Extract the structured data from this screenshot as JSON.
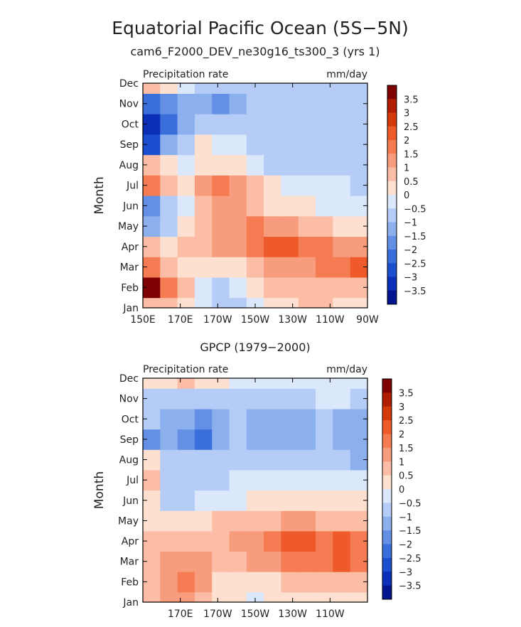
{
  "figure": {
    "title": "Equatorial Pacific Ocean (5S−5N)",
    "subtitle": "cam6_F2000_DEV_ne30g16_ts300_3 (yrs 1)"
  },
  "colorbar": {
    "labels": [
      "3.5",
      "3",
      "2.5",
      "2",
      "1.5",
      "1",
      "0.5",
      "0",
      "−0.5",
      "−1",
      "−1.5",
      "−2",
      "−2.5",
      "−3",
      "−3.5"
    ],
    "colors": [
      "#7f0000",
      "#b11d00",
      "#d53a0d",
      "#ef5a2a",
      "#f47b52",
      "#f89c7e",
      "#fbbda6",
      "#fde0d0",
      "#dbe8fb",
      "#b5cdf6",
      "#8cb0ee",
      "#6390e4",
      "#3a6edb",
      "#1c4ed0",
      "#0c2fb8",
      "#02158f"
    ]
  },
  "chart_data": [
    {
      "type": "heatmap",
      "title": "",
      "top_left_label": "Precipitation rate",
      "top_right_label": "mm/day",
      "ylabel": "Month",
      "xlabel": "",
      "x_ticks": [
        "150E",
        "170E",
        "170W",
        "150W",
        "130W",
        "110W",
        "90W"
      ],
      "y_ticks": [
        "Jan",
        "Feb",
        "Mar",
        "Apr",
        "May",
        "Jun",
        "Jul",
        "Aug",
        "Sep",
        "Oct",
        "Nov",
        "Dec"
      ],
      "xlim": [
        "150E",
        "90W"
      ],
      "ylim": [
        "Jan",
        "Dec"
      ],
      "series": [
        {
          "name": "Jan",
          "values": [
            0.8,
            0.6,
            0.2,
            -0.3,
            -0.8,
            -0.5,
            -0.1,
            0.2,
            0.5,
            0.7,
            0.6,
            0.5,
            0.3
          ]
        },
        {
          "name": "Feb",
          "values": [
            3.8,
            2.0,
            0.8,
            -0.2,
            -0.9,
            -0.4,
            0.1,
            0.6,
            0.9,
            1.0,
            0.8,
            0.7,
            0.6
          ]
        },
        {
          "name": "Mar",
          "values": [
            1.8,
            0.9,
            0.5,
            0.4,
            0.3,
            0.4,
            0.6,
            1.1,
            1.4,
            1.5,
            1.6,
            2.0,
            2.2
          ]
        },
        {
          "name": "Apr",
          "values": [
            0.6,
            0.5,
            0.6,
            0.9,
            1.2,
            1.4,
            1.6,
            2.1,
            2.3,
            2.0,
            1.6,
            1.3,
            1.2
          ]
        },
        {
          "name": "May",
          "values": [
            -1.0,
            -0.6,
            0.5,
            1.0,
            1.3,
            1.5,
            1.6,
            1.5,
            1.2,
            0.9,
            0.6,
            0.4,
            0.3
          ]
        },
        {
          "name": "Jun",
          "values": [
            -1.6,
            -0.8,
            -0.4,
            0.9,
            1.2,
            1.1,
            1.0,
            0.5,
            0.2,
            0.1,
            0.0,
            0.0,
            -0.1
          ]
        },
        {
          "name": "Jul",
          "values": [
            1.6,
            0.6,
            0.5,
            1.3,
            1.6,
            1.2,
            0.7,
            0.1,
            -0.2,
            -0.3,
            -0.4,
            -0.4,
            -0.5
          ]
        },
        {
          "name": "Aug",
          "values": [
            1.0,
            0.2,
            -0.3,
            0.2,
            0.4,
            0.3,
            -0.1,
            -0.5,
            -0.6,
            -0.6,
            -0.6,
            -0.6,
            -0.7
          ]
        },
        {
          "name": "Sep",
          "values": [
            -2.5,
            -1.0,
            -0.6,
            0.2,
            -0.2,
            -0.3,
            -0.6,
            -0.7,
            -0.7,
            -0.7,
            -0.7,
            -0.7,
            -0.6
          ]
        },
        {
          "name": "Oct",
          "values": [
            -3.0,
            -2.0,
            -1.2,
            -0.7,
            -0.5,
            -0.5,
            -0.7,
            -0.8,
            -0.8,
            -0.8,
            -0.8,
            -0.7,
            -0.7
          ]
        },
        {
          "name": "Nov",
          "values": [
            -2.4,
            -1.6,
            -1.2,
            -1.0,
            -1.5,
            -1.1,
            -0.9,
            -0.8,
            -0.8,
            -0.7,
            -0.7,
            -0.6,
            -0.6
          ]
        },
        {
          "name": "Dec",
          "values": [
            0.8,
            0.2,
            -0.4,
            -0.8,
            -0.9,
            -0.8,
            -0.7,
            -0.6,
            -0.6,
            -0.5,
            -0.5,
            -0.5,
            -0.5
          ]
        }
      ]
    },
    {
      "type": "heatmap",
      "title": "GPCP (1979−2000)",
      "top_left_label": "Precipitation rate",
      "top_right_label": "mm/day",
      "ylabel": "Month",
      "xlabel": "",
      "x_ticks": [
        "",
        "170E",
        "170W",
        "150W",
        "130W",
        "110W",
        ""
      ],
      "y_ticks": [
        "Jan",
        "Feb",
        "Mar",
        "Apr",
        "May",
        "Jun",
        "Jul",
        "Aug",
        "Sep",
        "Oct",
        "Nov",
        "Dec"
      ],
      "xlim": [
        "150E",
        "90W"
      ],
      "ylim": [
        "Jan",
        "Dec"
      ],
      "series": [
        {
          "name": "Jan",
          "values": [
            0.6,
            1.2,
            1.4,
            0.8,
            0.3,
            0.1,
            0.0,
            0.1,
            0.2,
            0.3,
            0.3,
            0.2,
            0.1
          ]
        },
        {
          "name": "Feb",
          "values": [
            0.8,
            1.3,
            1.6,
            1.2,
            0.5,
            0.2,
            0.2,
            0.4,
            0.6,
            0.8,
            0.9,
            0.9,
            0.6
          ]
        },
        {
          "name": "Mar",
          "values": [
            1.0,
            1.4,
            1.5,
            1.2,
            0.8,
            0.8,
            1.1,
            1.4,
            1.8,
            2.0,
            1.9,
            2.1,
            1.7
          ]
        },
        {
          "name": "Apr",
          "values": [
            0.6,
            0.9,
            0.9,
            0.9,
            0.9,
            1.1,
            1.5,
            1.8,
            2.2,
            2.5,
            2.0,
            2.2,
            1.6
          ]
        },
        {
          "name": "May",
          "values": [
            0.2,
            0.1,
            0.2,
            0.5,
            0.7,
            0.8,
            0.9,
            1.0,
            1.1,
            1.1,
            1.0,
            0.9,
            0.6
          ]
        },
        {
          "name": "Jun",
          "values": [
            0.3,
            -0.6,
            -0.5,
            -0.3,
            -0.1,
            0.0,
            0.1,
            0.2,
            0.3,
            0.3,
            0.3,
            0.2,
            0.1
          ]
        },
        {
          "name": "Jul",
          "values": [
            0.6,
            -0.7,
            -0.7,
            -0.6,
            -0.5,
            -0.4,
            -0.3,
            -0.2,
            -0.2,
            -0.1,
            -0.1,
            -0.2,
            -0.3
          ]
        },
        {
          "name": "Aug",
          "values": [
            0.1,
            -0.8,
            -0.9,
            -0.8,
            -0.7,
            -0.6,
            -0.6,
            -0.6,
            -0.5,
            -0.5,
            -0.6,
            -0.9,
            -1.0
          ]
        },
        {
          "name": "Sep",
          "values": [
            -1.5,
            -1.2,
            -1.6,
            -2.0,
            -1.3,
            -0.7,
            -1.1,
            -1.3,
            -1.2,
            -1.1,
            -0.9,
            -1.3,
            -1.2
          ]
        },
        {
          "name": "Oct",
          "values": [
            -0.7,
            -1.0,
            -1.4,
            -1.6,
            -1.2,
            -0.8,
            -1.1,
            -1.2,
            -1.2,
            -1.1,
            -0.9,
            -1.2,
            -1.1
          ]
        },
        {
          "name": "Nov",
          "values": [
            -0.5,
            -0.6,
            -0.7,
            -0.7,
            -0.6,
            -0.5,
            -0.5,
            -0.5,
            -0.5,
            -0.5,
            -0.4,
            -0.4,
            -0.5
          ]
        },
        {
          "name": "Dec",
          "values": [
            0.2,
            0.5,
            0.7,
            0.4,
            0.2,
            0.0,
            -0.1,
            -0.1,
            -0.2,
            -0.2,
            -0.2,
            -0.2,
            -0.2
          ]
        }
      ]
    }
  ]
}
